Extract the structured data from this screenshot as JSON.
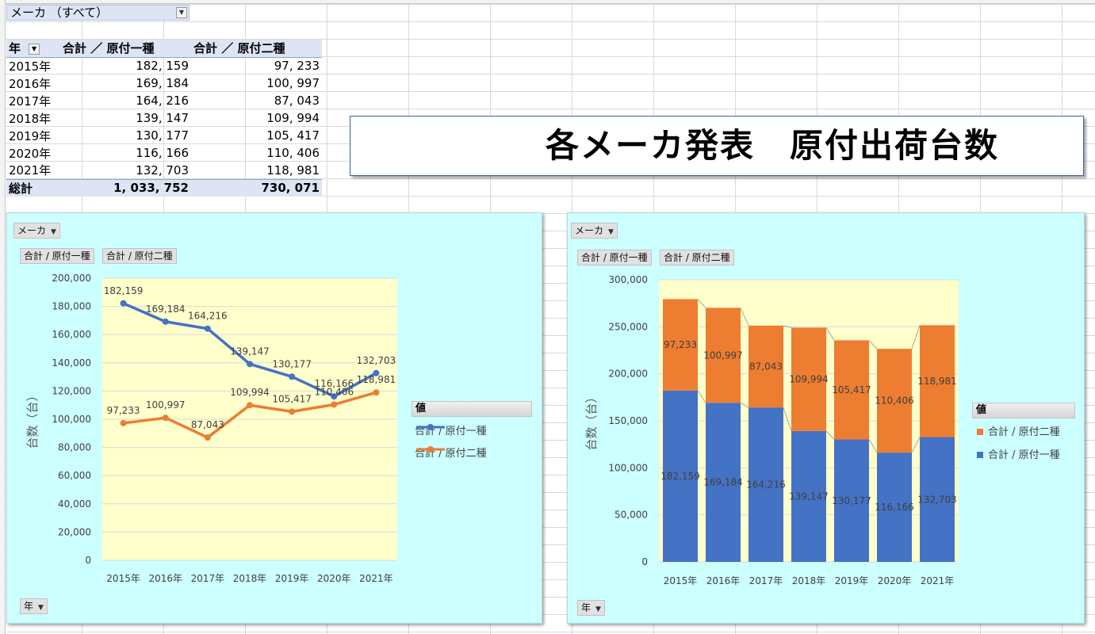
{
  "filter": {
    "label": "メーカ （すべて）"
  },
  "pivot": {
    "header": {
      "year": "年",
      "col1": "合計 ／ 原付一種",
      "col2": "合計 ／ 原付二種"
    },
    "rows": [
      {
        "year": "2015年",
        "v1": "182, 159",
        "v2": "97, 233"
      },
      {
        "year": "2016年",
        "v1": "169, 184",
        "v2": "100, 997"
      },
      {
        "year": "2017年",
        "v1": "164, 216",
        "v2": "87, 043"
      },
      {
        "year": "2018年",
        "v1": "139, 147",
        "v2": "109, 994"
      },
      {
        "year": "2019年",
        "v1": "130, 177",
        "v2": "105, 417"
      },
      {
        "year": "2020年",
        "v1": "116, 166",
        "v2": "110, 406"
      },
      {
        "year": "2021年",
        "v1": "132, 703",
        "v2": "118, 981"
      }
    ],
    "total": {
      "label": "総計",
      "v1": "1, 033, 752",
      "v2": "730, 071"
    }
  },
  "title": "各メーカ発表　原付出荷台数",
  "controls": {
    "maker_btn": "メーカ",
    "series1_btn": "合計 / 原付一種",
    "series2_btn": "合計 / 原付二種",
    "year_btn": "年",
    "legend_header": "値"
  },
  "colors": {
    "series1": "#4472c4",
    "series2": "#ed7d31",
    "plot_bg": "#ffffcc",
    "panel_bg": "#ccffff"
  },
  "chart_data": [
    {
      "type": "line",
      "categories": [
        "2015年",
        "2016年",
        "2017年",
        "2018年",
        "2019年",
        "2020年",
        "2021年"
      ],
      "series": [
        {
          "name": "合計 / 原付一種",
          "values": [
            182159,
            169184,
            164216,
            139147,
            130177,
            116166,
            132703
          ]
        },
        {
          "name": "合計 / 原付二種",
          "values": [
            97233,
            100997,
            87043,
            109994,
            105417,
            110406,
            118981
          ]
        }
      ],
      "ylabel": "台数（台）",
      "ylim": [
        0,
        200000
      ],
      "yticks": [
        0,
        20000,
        40000,
        60000,
        80000,
        100000,
        120000,
        140000,
        160000,
        180000,
        200000
      ],
      "legend": "right",
      "grid": true
    },
    {
      "type": "bar",
      "stacked": true,
      "categories": [
        "2015年",
        "2016年",
        "2017年",
        "2018年",
        "2019年",
        "2020年",
        "2021年"
      ],
      "series": [
        {
          "name": "合計 / 原付一種",
          "values": [
            182159,
            169184,
            164216,
            139147,
            130177,
            116166,
            132703
          ]
        },
        {
          "name": "合計 / 原付二種",
          "values": [
            97233,
            100997,
            87043,
            109994,
            105417,
            110406,
            118981
          ]
        }
      ],
      "legend_order": [
        "合計 / 原付二種",
        "合計 / 原付一種"
      ],
      "ylabel": "台数（台）",
      "ylim": [
        0,
        300000
      ],
      "yticks": [
        0,
        50000,
        100000,
        150000,
        200000,
        250000,
        300000
      ],
      "legend": "right",
      "grid": true,
      "series_lines": true
    }
  ]
}
